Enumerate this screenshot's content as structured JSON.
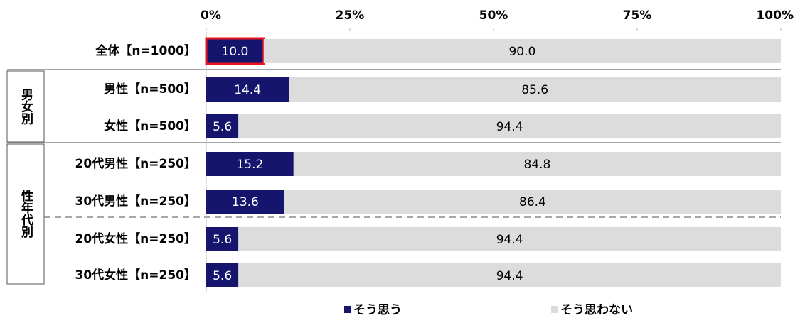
{
  "chart_data": {
    "type": "stacked-bar-horizontal",
    "categories": [
      "全体【n=1000】",
      "男性【n=500】",
      "女性【n=500】",
      "20代男性【n=250】",
      "30代男性【n=250】",
      "20代女性【n=250】",
      "30代女性【n=250】"
    ],
    "group_labels": [
      "男女別",
      "性年代別"
    ],
    "series": [
      {
        "name": "そう思う",
        "color": "#15156e",
        "values": [
          10,
          14.4,
          5.6,
          15.2,
          13.6,
          5.6,
          5.6
        ],
        "value_labels": [
          "10.0",
          "14.4",
          "5.6",
          "15.2",
          "13.6",
          "5.6",
          "5.6"
        ]
      },
      {
        "name": "そう思わない",
        "color": "#dcdcdc",
        "values": [
          90,
          85.6,
          94.4,
          84.8,
          86.4,
          94.4,
          94.4
        ],
        "value_labels": [
          "90.0",
          "85.6",
          "94.4",
          "84.8",
          "86.4",
          "94.4",
          "94.4"
        ]
      }
    ],
    "xlim": [
      0,
      100
    ],
    "xticks": [
      {
        "value": 0,
        "label": "0%"
      },
      {
        "value": 25,
        "label": "25%"
      },
      {
        "value": 50,
        "label": "50%"
      },
      {
        "value": 75,
        "label": "75%"
      },
      {
        "value": 100,
        "label": "100%"
      }
    ],
    "highlight_color": "#e8141e"
  }
}
